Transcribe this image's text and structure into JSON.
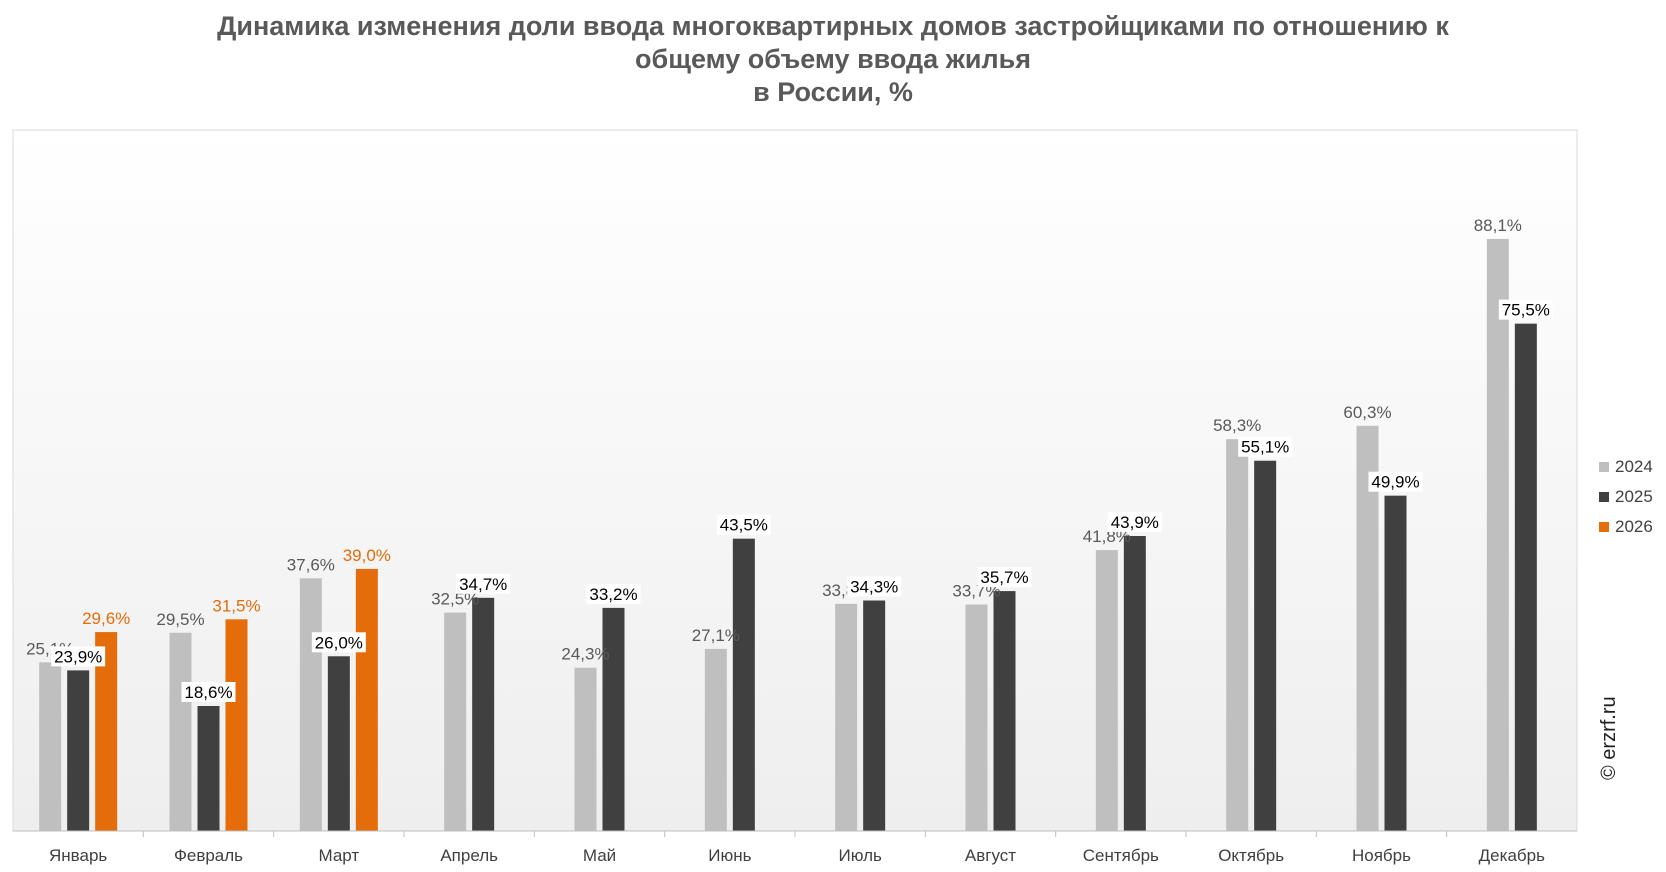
{
  "chart_data": {
    "type": "bar",
    "title": [
      "Динамика изменения доли ввода многоквартирных домов застройщиками по отношению к",
      "общему объему ввода жилья",
      "в России, %"
    ],
    "categories": [
      "Январь",
      "Февраль",
      "Март",
      "Апрель",
      "Май",
      "Июнь",
      "Июль",
      "Август",
      "Сентябрь",
      "Октябрь",
      "Ноябрь",
      "Декабрь"
    ],
    "series": [
      {
        "name": "2024",
        "color": "#bfbfbf",
        "label_color": "#595959",
        "values": [
          25.1,
          29.5,
          37.6,
          32.5,
          24.3,
          27.1,
          33.8,
          33.7,
          41.8,
          58.3,
          60.3,
          88.1
        ],
        "labels": [
          "25,1%",
          "29,5%",
          "37,6%",
          "32,5%",
          "24,3%",
          "27,1%",
          "33,8%",
          "33,7%",
          "41,8%",
          "58,3%",
          "60,3%",
          "88,1%"
        ]
      },
      {
        "name": "2025",
        "color": "#404040",
        "label_color": "#000000",
        "values": [
          23.9,
          18.6,
          26.0,
          34.7,
          33.2,
          43.5,
          34.3,
          35.7,
          43.9,
          55.1,
          49.9,
          75.5
        ],
        "labels": [
          "23,9%",
          "18,6%",
          "26,0%",
          "34,7%",
          "33,2%",
          "43,5%",
          "34,3%",
          "35,7%",
          "43,9%",
          "55,1%",
          "49,9%",
          "75,5%"
        ]
      },
      {
        "name": "2026",
        "color": "#e46c0a",
        "label_color": "#e46c0a",
        "values": [
          29.6,
          31.5,
          39.0,
          null,
          null,
          null,
          null,
          null,
          null,
          null,
          null,
          null
        ],
        "labels": [
          "29,6%",
          "31,5%",
          "39,0%",
          null,
          null,
          null,
          null,
          null,
          null,
          null,
          null,
          null
        ]
      }
    ],
    "ylim": [
      0,
      100
    ],
    "grid": false,
    "legend_position": "right"
  },
  "watermark": "© erzrf.ru"
}
